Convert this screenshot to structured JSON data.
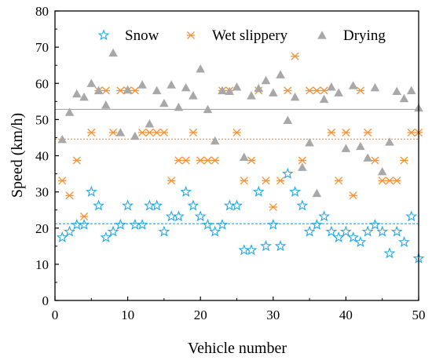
{
  "chart_data": {
    "type": "scatter",
    "title": "",
    "xlabel": "Vehicle number",
    "ylabel": "Speed (km/h)",
    "xlim": [
      0,
      50
    ],
    "ylim": [
      0,
      80
    ],
    "x_ticks": [
      "0",
      "10",
      "20",
      "30",
      "40",
      "50"
    ],
    "y_ticks": [
      "0",
      "10",
      "20",
      "30",
      "40",
      "50",
      "60",
      "70",
      "80"
    ],
    "grid": false,
    "legend_position": "top",
    "series": [
      {
        "name": "Snow",
        "marker": "star",
        "color": "#1ea8e8",
        "mean_line": 21.2,
        "x": [
          1,
          2,
          3,
          4,
          5,
          6,
          7,
          8,
          9,
          10,
          11,
          12,
          13,
          14,
          15,
          16,
          17,
          18,
          19,
          20,
          21,
          22,
          23,
          24,
          25,
          26,
          27,
          28,
          29,
          30,
          31,
          32,
          33,
          34,
          35,
          36,
          37,
          38,
          39,
          40,
          41,
          42,
          43,
          44,
          45,
          46,
          47,
          48,
          49,
          50
        ],
        "y": [
          17.4,
          19,
          20.9,
          20.9,
          30,
          26.2,
          17.4,
          19,
          20.9,
          26.2,
          20.9,
          20.9,
          26.2,
          26.2,
          19,
          23.2,
          23.2,
          30,
          26.2,
          23.2,
          20.9,
          19,
          20.9,
          26.2,
          26.2,
          13.9,
          13.9,
          30,
          15,
          20.9,
          15,
          35,
          30,
          26.2,
          19,
          20.9,
          23.2,
          19,
          17.4,
          19,
          17.4,
          16.1,
          19,
          20.9,
          19,
          13,
          19,
          16.1,
          23.2,
          11.6
        ]
      },
      {
        "name": "Wet slippery",
        "marker": "asterisk",
        "color": "#f39237",
        "mean_line": 44.6,
        "x": [
          1,
          2,
          3,
          4,
          5,
          6,
          7,
          8,
          9,
          10,
          11,
          12,
          13,
          14,
          15,
          16,
          17,
          18,
          19,
          20,
          21,
          22,
          23,
          24,
          25,
          26,
          27,
          28,
          29,
          30,
          31,
          32,
          33,
          34,
          35,
          36,
          37,
          38,
          39,
          40,
          41,
          42,
          43,
          44,
          45,
          46,
          47,
          48,
          49,
          50
        ],
        "y": [
          33.1,
          29,
          38.7,
          23.2,
          46.4,
          58,
          58,
          46.4,
          58,
          58,
          58,
          46.4,
          46.4,
          46.4,
          46.4,
          33.1,
          38.7,
          38.7,
          46.4,
          38.7,
          38.7,
          38.7,
          58,
          58,
          46.4,
          33.1,
          38.7,
          58,
          33.1,
          25.8,
          33.1,
          58,
          67.5,
          38.7,
          58,
          58,
          58,
          46.4,
          33.1,
          46.4,
          29,
          58,
          46.4,
          38.7,
          33.1,
          33.1,
          33.1,
          38.7,
          46.4,
          46.4
        ]
      },
      {
        "name": "Drying",
        "marker": "triangle",
        "color": "#a8a8a8",
        "mean_line": 52.8,
        "x": [
          1,
          2,
          3,
          4,
          5,
          6,
          7,
          8,
          9,
          10,
          11,
          12,
          13,
          14,
          15,
          16,
          17,
          18,
          19,
          20,
          21,
          22,
          23,
          24,
          25,
          26,
          27,
          28,
          29,
          30,
          31,
          32,
          33,
          34,
          35,
          36,
          37,
          38,
          39,
          40,
          41,
          42,
          43,
          44,
          45,
          46,
          47,
          48,
          49,
          50
        ],
        "y": [
          44.5,
          52,
          57.1,
          56.2,
          60,
          58,
          54,
          68.4,
          46.4,
          58.2,
          45.4,
          59.6,
          48.8,
          58,
          54.5,
          59.6,
          53.4,
          58.8,
          56.6,
          64,
          52.8,
          44.1,
          58,
          57.8,
          59,
          39.6,
          56.6,
          58.6,
          60.8,
          57.4,
          62.4,
          49.8,
          56.2,
          36.8,
          43.6,
          29.6,
          55.6,
          59,
          57.4,
          42,
          59.4,
          42.6,
          39.4,
          58.8,
          35.6,
          43.8,
          57.8,
          55.8,
          58,
          53.2
        ]
      }
    ]
  }
}
